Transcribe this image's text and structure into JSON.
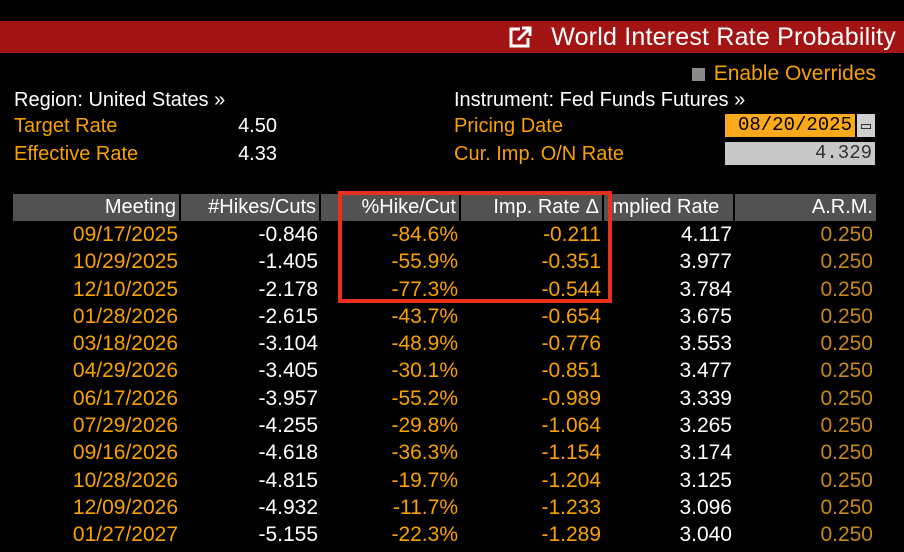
{
  "window": {
    "title": "World Interest Rate Probability"
  },
  "overrides": {
    "label": "Enable Overrides"
  },
  "left": {
    "region_label": "Region: United States »",
    "target_rate_label": "Target Rate",
    "target_rate_value": "4.50",
    "effective_rate_label": "Effective Rate",
    "effective_rate_value": "4.33"
  },
  "right": {
    "instrument_label": "Instrument: Fed Funds Futures »",
    "pricing_date_label": "Pricing Date",
    "pricing_date_value": "08/20/2025",
    "cur_imp_label": "Cur. Imp. O/N Rate",
    "cur_imp_value": "4.329"
  },
  "table": {
    "headers": [
      "Meeting",
      "#Hikes/Cuts",
      "%Hike/Cut",
      "Imp. Rate Δ",
      "Implied Rate",
      "A.R.M."
    ],
    "rows": [
      [
        "09/17/2025",
        "-0.846",
        "-84.6%",
        "-0.211",
        "4.117",
        "0.250"
      ],
      [
        "10/29/2025",
        "-1.405",
        "-55.9%",
        "-0.351",
        "3.977",
        "0.250"
      ],
      [
        "12/10/2025",
        "-2.178",
        "-77.3%",
        "-0.544",
        "3.784",
        "0.250"
      ],
      [
        "01/28/2026",
        "-2.615",
        "-43.7%",
        "-0.654",
        "3.675",
        "0.250"
      ],
      [
        "03/18/2026",
        "-3.104",
        "-48.9%",
        "-0.776",
        "3.553",
        "0.250"
      ],
      [
        "04/29/2026",
        "-3.405",
        "-30.1%",
        "-0.851",
        "3.477",
        "0.250"
      ],
      [
        "06/17/2026",
        "-3.957",
        "-55.2%",
        "-0.989",
        "3.339",
        "0.250"
      ],
      [
        "07/29/2026",
        "-4.255",
        "-29.8%",
        "-1.064",
        "3.265",
        "0.250"
      ],
      [
        "09/16/2026",
        "-4.618",
        "-36.3%",
        "-1.154",
        "3.174",
        "0.250"
      ],
      [
        "10/28/2026",
        "-4.815",
        "-19.7%",
        "-1.204",
        "3.125",
        "0.250"
      ],
      [
        "12/09/2026",
        "-4.932",
        "-11.7%",
        "-1.233",
        "3.096",
        "0.250"
      ],
      [
        "01/27/2027",
        "-5.155",
        "-22.3%",
        "-1.289",
        "3.040",
        "0.250"
      ]
    ]
  },
  "colors": {
    "title_bar": "#a31515",
    "amber": "#f8a100",
    "highlight": "#e8301f",
    "header_bg": "#525252"
  },
  "icons": {
    "title": "external-link-icon",
    "date": "calendar-icon"
  }
}
